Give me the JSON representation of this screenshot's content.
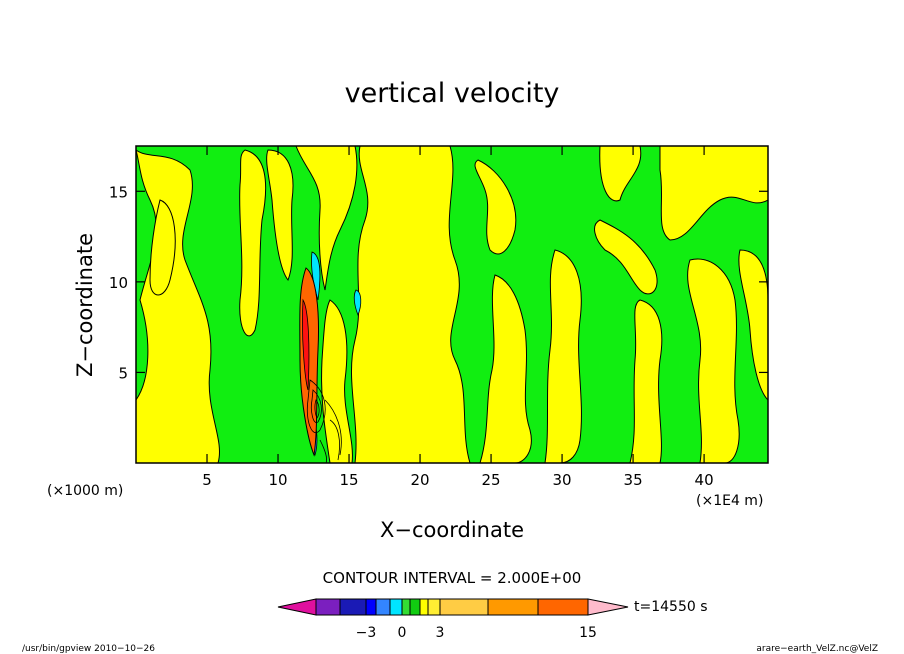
{
  "chart_data": {
    "type": "heatmap",
    "title": "vertical velocity",
    "xlabel": "X−coordinate",
    "ylabel": "Z−coordinate",
    "x_unit_left": "(×1000 m)",
    "x_unit_right": "(×1E4 m)",
    "xlim": [
      0,
      44.5
    ],
    "ylim": [
      0,
      17.5
    ],
    "x_ticks": [
      5,
      10,
      15,
      20,
      25,
      30,
      35,
      40
    ],
    "y_ticks": [
      5,
      10,
      15
    ],
    "x_tick_labels": [
      "5",
      "10",
      "15",
      "20",
      "25",
      "30",
      "35",
      "40"
    ],
    "y_tick_labels": [
      "5",
      "10",
      "15"
    ],
    "contour_interval_text": "CONTOUR INTERVAL = 2.000E+00",
    "time_label": "t=14550 s",
    "colorbar": {
      "colors": [
        "#e0109e",
        "#7b1fbf",
        "#1a1ab5",
        "#0000ff",
        "#3385ff",
        "#00e5ff",
        "#33dd33",
        "#11cc11",
        "#ffff00",
        "#ffee33",
        "#ffcc44",
        "#ff9900",
        "#ff6600",
        "#ff1111",
        "#ff7777",
        "#ffbbcc"
      ],
      "tick_labels": [
        "−3",
        "0",
        "3",
        "15"
      ]
    },
    "footer_left": "/usr/bin/gpview   2010−10−26",
    "footer_right": "arare−earth_VelZ.nc@VelZ",
    "regions": {
      "background": "#11ee11",
      "positive": "#ffff00",
      "updraft_core": "#ff6600",
      "downdraft": "#00e5ff"
    }
  }
}
